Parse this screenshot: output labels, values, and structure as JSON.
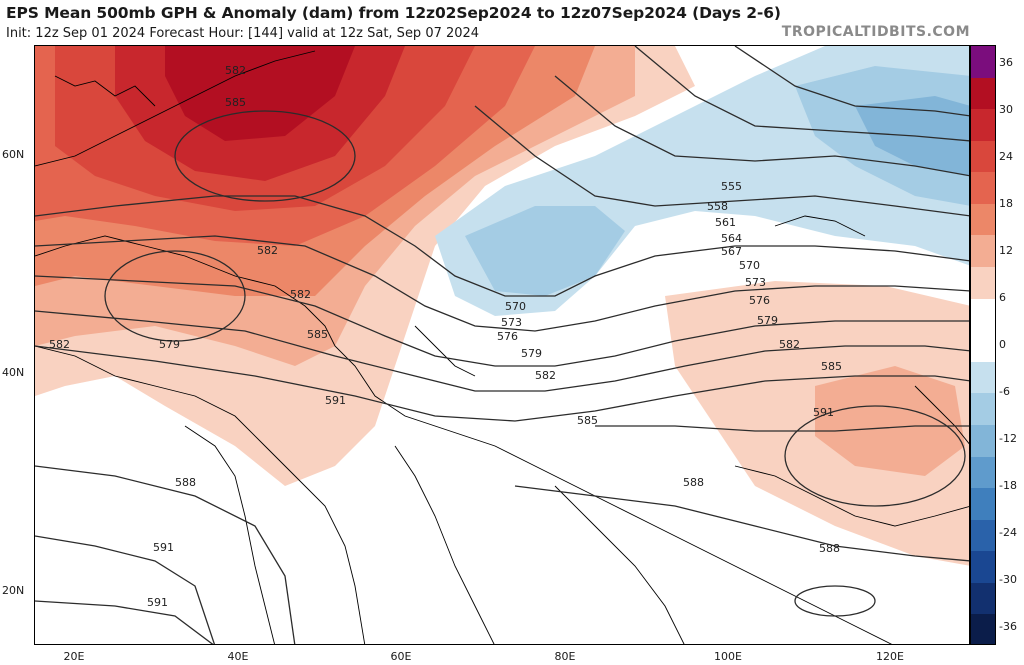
{
  "header": {
    "title": "EPS Mean 500mb GPH & Anomaly (dam) from 12z02Sep2024 to 12z07Sep2024 (Days 2-6)",
    "subtitle": "Init: 12z Sep 01 2024   Forecast Hour: [144]   valid at 12z Sat, Sep 07 2024",
    "brand": "TROPICALTIDBITS.COM"
  },
  "axes": {
    "lat_labels": [
      "60N",
      "40N",
      "20N"
    ],
    "lon_labels": [
      "20E",
      "40E",
      "60E",
      "80E",
      "100E",
      "120E"
    ]
  },
  "colorbar": {
    "labels": [
      "36",
      "30",
      "24",
      "18",
      "12",
      "6",
      "0",
      "-6",
      "-12",
      "-18",
      "-24",
      "-30",
      "-36"
    ],
    "colors": [
      "#7b0d7d",
      "#b30f22",
      "#c8272d",
      "#d9473c",
      "#e4644f",
      "#ec8768",
      "#f3ad93",
      "#f9d2c1",
      "#ffffff",
      "#ffffff",
      "#c6e0ee",
      "#a4cce4",
      "#82b5d8",
      "#5f9bcc",
      "#3f7fbd",
      "#2a62aa",
      "#1a4792",
      "#12306f",
      "#0b1d4a"
    ]
  },
  "contours": {
    "labels": [
      "582",
      "585",
      "582",
      "582",
      "579",
      "582",
      "585",
      "591",
      "588",
      "591",
      "591",
      "555",
      "558",
      "561",
      "564",
      "567",
      "570",
      "573",
      "576",
      "579",
      "582",
      "570",
      "573",
      "576",
      "579",
      "582",
      "585",
      "585",
      "591",
      "588",
      "588"
    ]
  }
}
